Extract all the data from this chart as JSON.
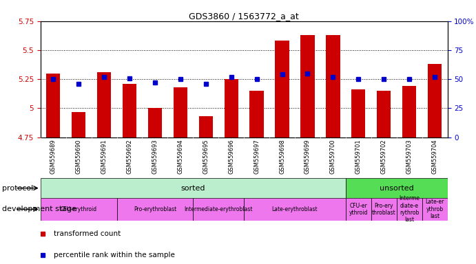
{
  "title": "GDS3860 / 1563772_a_at",
  "samples": [
    "GSM559689",
    "GSM559690",
    "GSM559691",
    "GSM559692",
    "GSM559693",
    "GSM559694",
    "GSM559695",
    "GSM559696",
    "GSM559697",
    "GSM559698",
    "GSM559699",
    "GSM559700",
    "GSM559701",
    "GSM559702",
    "GSM559703",
    "GSM559704"
  ],
  "bar_values": [
    5.3,
    4.97,
    5.31,
    5.21,
    5.0,
    5.18,
    4.93,
    5.25,
    5.15,
    5.58,
    5.63,
    5.63,
    5.16,
    5.15,
    5.19,
    5.38
  ],
  "dot_values": [
    50,
    46,
    52,
    51,
    47,
    50,
    46,
    52,
    50,
    54,
    55,
    52,
    50,
    50,
    50,
    52
  ],
  "ylim_left": [
    4.75,
    5.75
  ],
  "ylim_right": [
    0,
    100
  ],
  "yticks_left": [
    4.75,
    5.0,
    5.25,
    5.5,
    5.75
  ],
  "yticks_right": [
    0,
    25,
    50,
    75,
    100
  ],
  "ytick_labels_left": [
    "4.75",
    "5",
    "5.25",
    "5.5",
    "5.75"
  ],
  "ytick_labels_right": [
    "0",
    "25",
    "50",
    "75",
    "100%"
  ],
  "hlines": [
    5.0,
    5.25,
    5.5
  ],
  "bar_color": "#cc0000",
  "dot_color": "#0000cc",
  "bar_bottom": 4.75,
  "protocol_colors": {
    "sorted": "#bbeecc",
    "unsorted": "#55dd55"
  },
  "dev_stage_color": "#ee77ee",
  "legend_items": [
    "transformed count",
    "percentile rank within the sample"
  ],
  "legend_colors": [
    "#cc0000",
    "#0000cc"
  ],
  "xlabel_protocol": "protocol",
  "xlabel_devstage": "development stage",
  "tick_label_color_left": "#cc0000",
  "tick_label_color_right": "#0000cc",
  "xtick_bg_color": "#cccccc",
  "fig_bg": "#ffffff"
}
